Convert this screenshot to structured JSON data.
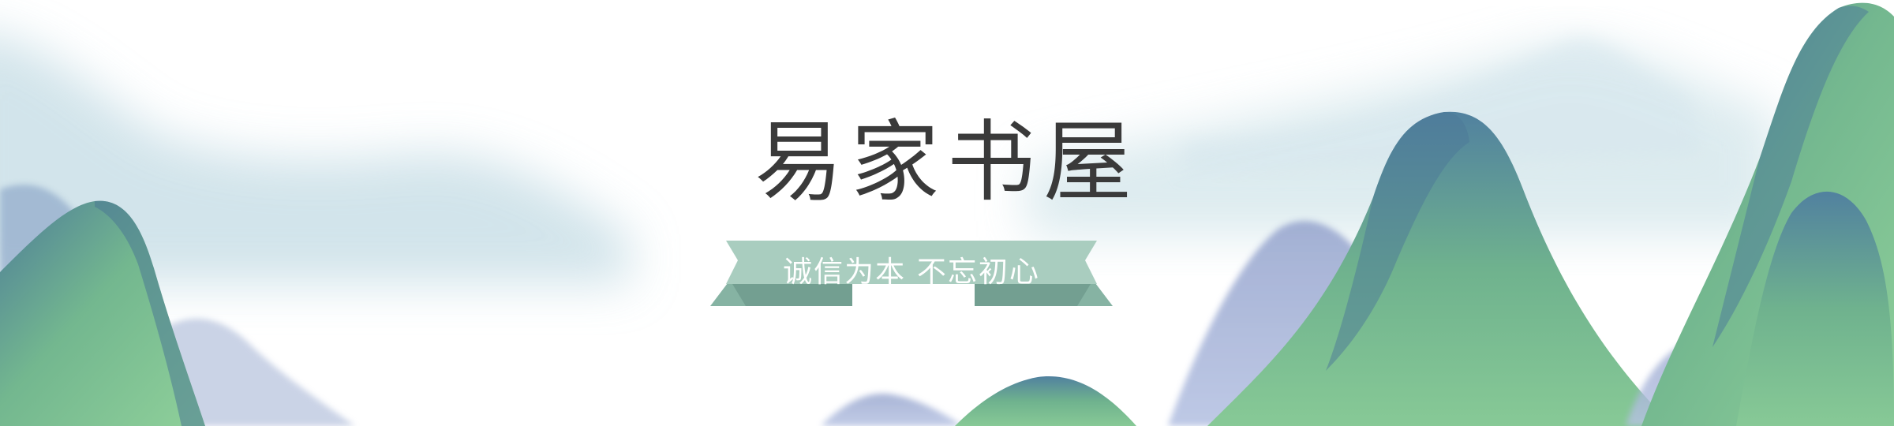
{
  "banner": {
    "title": "易家书屋",
    "slogan": "诚信为本 不忘初心",
    "colors": {
      "title": "#3a3a3a",
      "ribbon_front": "#a9cdbf",
      "ribbon_back": "#86b3a3",
      "mountain_green": "#78c08c",
      "mountain_blue": "#4f7fa0",
      "mist": "#b7d3df"
    }
  }
}
